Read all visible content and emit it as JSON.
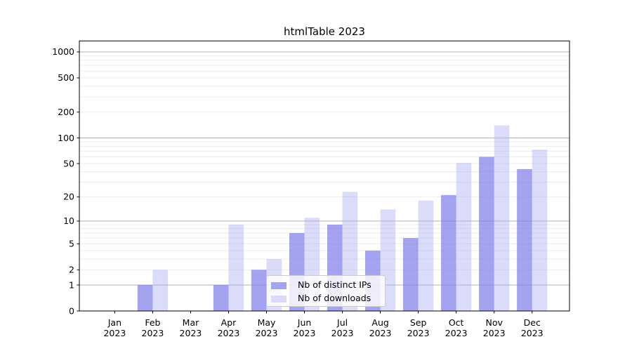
{
  "chart_data": {
    "type": "bar",
    "title": "htmlTable 2023",
    "categories": [
      "Jan",
      "Feb",
      "Mar",
      "Apr",
      "May",
      "Jun",
      "Jul",
      "Aug",
      "Sep",
      "Oct",
      "Nov",
      "Dec"
    ],
    "year_label": "2023",
    "series": [
      {
        "name": "Nb of distinct IPs",
        "legend_color": "#a3a3ef",
        "fill": "rgba(124,124,232,0.7)",
        "values": [
          0,
          1,
          0,
          1,
          2,
          7,
          9,
          4,
          6,
          21,
          60,
          43
        ]
      },
      {
        "name": "Nb of downloads",
        "legend_color": "#dbdbf9",
        "fill": "rgba(175,175,244,0.45)",
        "values": [
          0,
          2,
          0,
          9,
          3,
          11,
          23,
          14,
          18,
          51,
          140,
          73
        ]
      }
    ],
    "yscale": "log1p",
    "y_ticks": [
      0,
      1,
      2,
      5,
      10,
      20,
      50,
      100,
      200,
      500,
      1000
    ],
    "ylim": [
      0,
      1340
    ],
    "xlabel": "",
    "ylabel": "",
    "grid": true,
    "legend_position": "lower center",
    "colors": {
      "grid_major": "#b0b0b0",
      "grid_minor": "#ececec",
      "axis": "#000000",
      "text": "#000000",
      "background": "#ffffff"
    }
  }
}
